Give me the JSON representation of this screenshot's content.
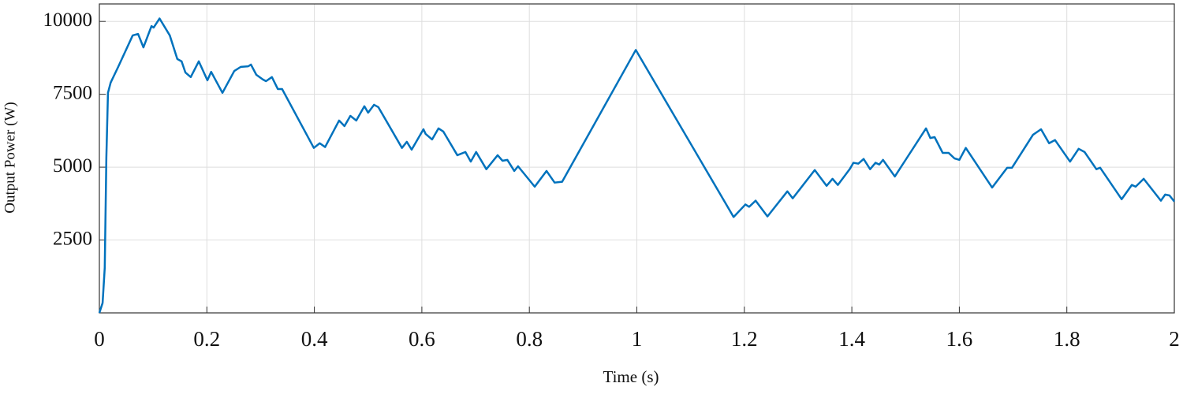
{
  "chart_data": {
    "type": "line",
    "xlabel": "Time (s)",
    "ylabel": "Output Power (W)",
    "xlim": [
      0,
      2
    ],
    "ylim": [
      0,
      10600
    ],
    "xticks": [
      0,
      0.2,
      0.4,
      0.6,
      0.8,
      1,
      1.2,
      1.4,
      1.6,
      1.8,
      2
    ],
    "yticks": [
      2500,
      5000,
      7500,
      10000
    ],
    "grid": true,
    "series": [
      {
        "color": "#0072bd",
        "x": [
          0,
          0.006,
          0.01,
          0.013,
          0.016,
          0.021,
          0.035,
          0.062,
          0.072,
          0.082,
          0.097,
          0.101,
          0.112,
          0.131,
          0.145,
          0.153,
          0.16,
          0.17,
          0.185,
          0.201,
          0.208,
          0.229,
          0.251,
          0.263,
          0.277,
          0.282,
          0.292,
          0.304,
          0.31,
          0.321,
          0.332,
          0.34,
          0.399,
          0.41,
          0.42,
          0.446,
          0.456,
          0.467,
          0.478,
          0.493,
          0.5,
          0.511,
          0.519,
          0.563,
          0.572,
          0.581,
          0.603,
          0.607,
          0.619,
          0.631,
          0.64,
          0.666,
          0.681,
          0.691,
          0.701,
          0.72,
          0.741,
          0.75,
          0.759,
          0.772,
          0.779,
          0.81,
          0.832,
          0.847,
          0.861,
          0.998,
          1.18,
          1.202,
          1.209,
          1.221,
          1.243,
          1.28,
          1.29,
          1.331,
          1.353,
          1.364,
          1.374,
          1.396,
          1.403,
          1.412,
          1.422,
          1.434,
          1.444,
          1.451,
          1.458,
          1.48,
          1.538,
          1.546,
          1.554,
          1.569,
          1.58,
          1.591,
          1.6,
          1.612,
          1.661,
          1.689,
          1.698,
          1.737,
          1.752,
          1.767,
          1.778,
          1.806,
          1.822,
          1.833,
          1.855,
          1.862,
          1.902,
          1.921,
          1.928,
          1.943,
          1.975,
          1.983,
          1.991,
          2.0
        ],
        "values": [
          0,
          340,
          1550,
          5330,
          7550,
          7900,
          8440,
          9520,
          9570,
          9110,
          9840,
          9790,
          10100,
          9520,
          8710,
          8630,
          8250,
          8090,
          8630,
          7980,
          8270,
          7550,
          8300,
          8440,
          8460,
          8520,
          8170,
          8010,
          7950,
          8090,
          7680,
          7680,
          5660,
          5820,
          5690,
          6600,
          6410,
          6760,
          6600,
          7090,
          6870,
          7140,
          7060,
          5660,
          5870,
          5600,
          6300,
          6140,
          5950,
          6330,
          6220,
          5410,
          5520,
          5190,
          5520,
          4930,
          5410,
          5220,
          5250,
          4870,
          5030,
          4330,
          4870,
          4470,
          4500,
          9020,
          3290,
          3720,
          3640,
          3850,
          3310,
          4170,
          3930,
          4900,
          4360,
          4600,
          4390,
          4930,
          5150,
          5120,
          5280,
          4930,
          5150,
          5090,
          5250,
          4680,
          6330,
          6000,
          6030,
          5490,
          5490,
          5300,
          5250,
          5660,
          4300,
          4980,
          4980,
          6110,
          6300,
          5820,
          5930,
          5190,
          5630,
          5520,
          4930,
          4980,
          3900,
          4390,
          4330,
          4600,
          3850,
          4060,
          4030,
          3820
        ]
      }
    ]
  }
}
